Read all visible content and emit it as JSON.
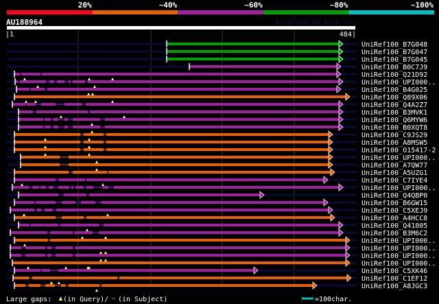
{
  "score_legend": {
    "labels": [
      "20%",
      "~40%",
      "~60%",
      "~80%",
      "~100%"
    ],
    "colors": [
      "#ff0020",
      "#e86000",
      "#a020a0",
      "#00a000",
      "#00c0c0"
    ]
  },
  "query": {
    "name": "AU188964",
    "start_label": "|1",
    "end_label": "484|",
    "watermark": "AlignView.pm Beta rel.7"
  },
  "colors": {
    "green": "#00a000",
    "magenta": "#a020a0",
    "orange": "#e86000",
    "navy": "#0a0a38",
    "marker": "#ffff80",
    "grid": "#3a3a14"
  },
  "rows": [
    {
      "label": "UniRef100_B7G048",
      "color": "green",
      "start": 235,
      "end": 492,
      "gaps": [],
      "markers": []
    },
    {
      "label": "UniRef100_B7G047",
      "color": "green",
      "start": 235,
      "end": 492,
      "gaps": [],
      "markers": []
    },
    {
      "label": "UniRef100_B7G045",
      "color": "green",
      "start": 235,
      "end": 492,
      "gaps": [],
      "markers": []
    },
    {
      "label": "UniRef100_B0C7J9",
      "color": "magenta",
      "start": 268,
      "end": 489,
      "gaps": [],
      "markers": []
    },
    {
      "label": "UniRef100_Q21D92",
      "color": "magenta",
      "start": 13,
      "end": 489,
      "gaps": [
        [
          21,
          23
        ],
        [
          51,
          53
        ]
      ],
      "markers": [
        28,
        122,
        156
      ]
    },
    {
      "label": "UniRef100_UPI000..",
      "color": "magenta",
      "start": 14,
      "end": 492,
      "gaps": [
        [
          18,
          21
        ],
        [
          59,
          64
        ],
        [
          71,
          75
        ],
        [
          86,
          92
        ],
        [
          95,
          98
        ],
        [
          116,
          120
        ]
      ],
      "markers": [
        47,
        130
      ]
    },
    {
      "label": "UniRef100_B4G025",
      "color": "magenta",
      "start": 16,
      "end": 489,
      "gaps": [
        [
          35,
          37
        ],
        [
          57,
          61
        ]
      ],
      "markers": [
        121,
        127
      ]
    },
    {
      "label": "UniRef100_Q89X06",
      "color": "orange",
      "start": 13,
      "end": 502,
      "gaps": [],
      "markers": [
        30,
        44,
        156
      ]
    },
    {
      "label": "UniRef100_Q4A2Z7",
      "color": "magenta",
      "start": 10,
      "end": 492,
      "gaps": [
        [
          29,
          31
        ],
        [
          44,
          52
        ],
        [
          73,
          86
        ],
        [
          111,
          117
        ]
      ],
      "markers": []
    },
    {
      "label": "UniRef100_B3MVK1",
      "color": "magenta",
      "start": 19,
      "end": 492,
      "gaps": [
        [
          40,
          45
        ],
        [
          120,
          123
        ]
      ],
      "markers": [
        81,
        173
      ]
    },
    {
      "label": "UniRef100_Q6MYW6",
      "color": "magenta",
      "start": 19,
      "end": 492,
      "gaps": [
        [
          55,
          57
        ],
        [
          66,
          70
        ],
        [
          77,
          86
        ],
        [
          91,
          98
        ],
        [
          138,
          145
        ]
      ],
      "markers": [
        126
      ]
    },
    {
      "label": "UniRef100_B0XQT8",
      "color": "magenta",
      "start": 19,
      "end": 492,
      "gaps": [
        [
          55,
          57
        ],
        [
          66,
          70
        ],
        [
          77,
          86
        ],
        [
          91,
          98
        ],
        [
          138,
          145
        ]
      ],
      "markers": [
        126
      ]
    },
    {
      "label": "UniRef100_C9JS29",
      "color": "orange",
      "start": 13,
      "end": 477,
      "gaps": [
        [
          109,
          114
        ],
        [
          143,
          147
        ]
      ],
      "markers": [
        58,
        122
      ]
    },
    {
      "label": "UniRef100_A8MSW5",
      "color": "orange",
      "start": 13,
      "end": 477,
      "gaps": [
        [
          109,
          114
        ],
        [
          143,
          147
        ]
      ],
      "markers": [
        58,
        122
      ]
    },
    {
      "label": "UniRef100_O15417-2",
      "color": "orange",
      "start": 13,
      "end": 477,
      "gaps": [
        [
          109,
          114
        ],
        [
          143,
          147
        ]
      ],
      "markers": [
        58,
        122
      ]
    },
    {
      "label": "UniRef100_UPI000..",
      "color": "orange",
      "start": 22,
      "end": 477,
      "gaps": [
        [
          79,
          92
        ]
      ],
      "markers": [
        133
      ]
    },
    {
      "label": "UniRef100_A7QW77",
      "color": "orange",
      "start": 22,
      "end": 477,
      "gaps": [
        [
          79,
          92
        ]
      ],
      "markers": [
        133
      ]
    },
    {
      "label": "UniRef100_A5UZG1",
      "color": "orange",
      "start": 13,
      "end": 480,
      "gaps": [
        [
          92,
          98
        ],
        [
          148,
          150
        ]
      ],
      "markers": []
    },
    {
      "label": "UniRef100_C7IYE4",
      "color": "magenta",
      "start": 13,
      "end": 470,
      "gaps": [
        [
          73,
          78
        ],
        [
          116,
          118
        ]
      ],
      "markers": [
        24,
        142
      ]
    },
    {
      "label": "UniRef100_UPI000..",
      "color": "magenta",
      "start": 10,
      "end": 492,
      "gaps": [
        [
          34,
          39
        ],
        [
          49,
          51
        ],
        [
          59,
          63
        ],
        [
          70,
          77
        ],
        [
          93,
          96
        ],
        [
          99,
          102
        ],
        [
          114,
          118
        ],
        [
          128,
          142
        ],
        [
          150,
          158
        ]
      ],
      "markers": []
    },
    {
      "label": "UniRef100_Q4QBP0",
      "color": "magenta",
      "start": 19,
      "end": 377,
      "gaps": [
        [
          77,
          85
        ],
        [
          118,
          122
        ]
      ],
      "markers": []
    },
    {
      "label": "UniRef100_B6GW15",
      "color": "magenta",
      "start": 13,
      "end": 470,
      "gaps": [
        [
          42,
          44
        ],
        [
          73,
          82
        ],
        [
          102,
          110
        ],
        [
          131,
          139
        ]
      ],
      "markers": []
    },
    {
      "label": "UniRef100_C5XEJ9",
      "color": "magenta",
      "start": 7,
      "end": 477,
      "gaps": [
        [
          42,
          46
        ],
        [
          52,
          57
        ],
        [
          69,
          74
        ]
      ],
      "markers": [
        27,
        149
      ]
    },
    {
      "label": "UniRef100_A4HCC8",
      "color": "orange",
      "start": 13,
      "end": 480,
      "gaps": [
        [
          73,
          82
        ],
        [
          114,
          118
        ]
      ],
      "markers": []
    },
    {
      "label": "UniRef100_Q41805",
      "color": "magenta",
      "start": 19,
      "end": 492,
      "gaps": [
        [
          35,
          37
        ],
        [
          77,
          80
        ],
        [
          136,
          143
        ]
      ],
      "markers": [
        119
      ]
    },
    {
      "label": "UniRef100_B3M6C2",
      "color": "magenta",
      "start": 7,
      "end": 492,
      "gaps": [
        [
          61,
          65
        ],
        [
          98,
          100
        ],
        [
          127,
          136
        ]
      ],
      "markers": [
        112,
        146
      ]
    },
    {
      "label": "UniRef100_UPI000..",
      "color": "orange",
      "start": 13,
      "end": 502,
      "gaps": [
        [
          62,
          65
        ]
      ],
      "markers": [
        28
      ]
    },
    {
      "label": "UniRef100_UPI000..",
      "color": "magenta",
      "start": 7,
      "end": 502,
      "gaps": [
        [
          23,
          29
        ],
        [
          58,
          61
        ],
        [
          67,
          73
        ],
        [
          98,
          102
        ]
      ],
      "markers": [
        139,
        146
      ]
    },
    {
      "label": "UniRef100_UPI000..",
      "color": "magenta",
      "start": 7,
      "end": 502,
      "gaps": [
        [
          23,
          29
        ],
        [
          58,
          61
        ],
        [
          67,
          73
        ],
        [
          98,
          102
        ]
      ],
      "markers": [
        139,
        146
      ]
    },
    {
      "label": "UniRef100_UPI000..",
      "color": "orange",
      "start": 10,
      "end": 502,
      "gaps": [],
      "markers": [
        33,
        88,
        120,
        122
      ]
    },
    {
      "label": "UniRef100_C5XK46",
      "color": "magenta",
      "start": 13,
      "end": 368,
      "gaps": [
        [
          51,
          53
        ],
        [
          65,
          77
        ]
      ],
      "markers": []
    },
    {
      "label": "UniRef100_C1EF12",
      "color": "orange",
      "start": 11,
      "end": 504,
      "gaps": [
        [
          34,
          39
        ],
        [
          163,
          166
        ]
      ],
      "markers": [
        67,
        78
      ]
    },
    {
      "label": "UniRef100_A8JGC3",
      "color": "orange",
      "start": 13,
      "end": 454,
      "gaps": [
        [
          29,
          34
        ],
        [
          51,
          58
        ],
        [
          72,
          81
        ],
        [
          87,
          92
        ],
        [
          137,
          140
        ]
      ],
      "markers": [
        133
      ]
    }
  ],
  "footer": {
    "gaps_label": "Large gaps:",
    "query_gap": "(in Query)/",
    "subject_gap": "(in Subject)",
    "scale_label": "=100char."
  }
}
